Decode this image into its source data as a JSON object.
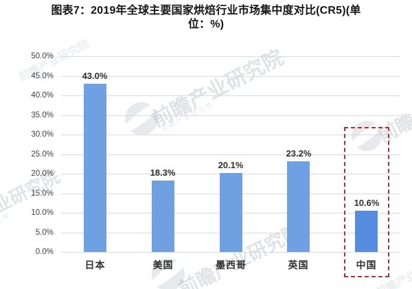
{
  "title": {
    "line1": "图表7：2019年全球主要国家烘焙行业市场集中度对比(CR5)(单",
    "line2": "位：%)"
  },
  "chart_data": {
    "type": "bar",
    "title": "2019年全球主要国家烘焙行业市场集中度对比(CR5)",
    "unit": "%",
    "categories": [
      "日本",
      "美国",
      "墨西哥",
      "英国",
      "中国"
    ],
    "values": [
      43.0,
      18.3,
      20.1,
      23.2,
      10.6
    ],
    "value_labels": [
      "43.0%",
      "18.3%",
      "20.1%",
      "23.2%",
      "10.6%"
    ],
    "ylim": [
      0,
      50
    ],
    "ytick_labels": [
      "50.0%",
      "45.0%",
      "40.0%",
      "35.0%",
      "30.0%",
      "25.0%",
      "20.0%",
      "15.0%",
      "10.0%",
      "5.0%",
      "0.0%"
    ],
    "grid": true,
    "legend": false,
    "highlight": {
      "category": "中国",
      "style": "red-dashed-box"
    }
  },
  "watermark": {
    "text": "前瞻产业研究院"
  },
  "colors": {
    "bar": "#6FA0E2",
    "bar_highlight": "#568CDF",
    "grid": "#D9D9D9",
    "axis_text": "#3D3D3D",
    "label_text": "#2E2E2E",
    "title_text": "#141414",
    "highlight_box": "#A93232",
    "background": "#FFFFFF"
  }
}
